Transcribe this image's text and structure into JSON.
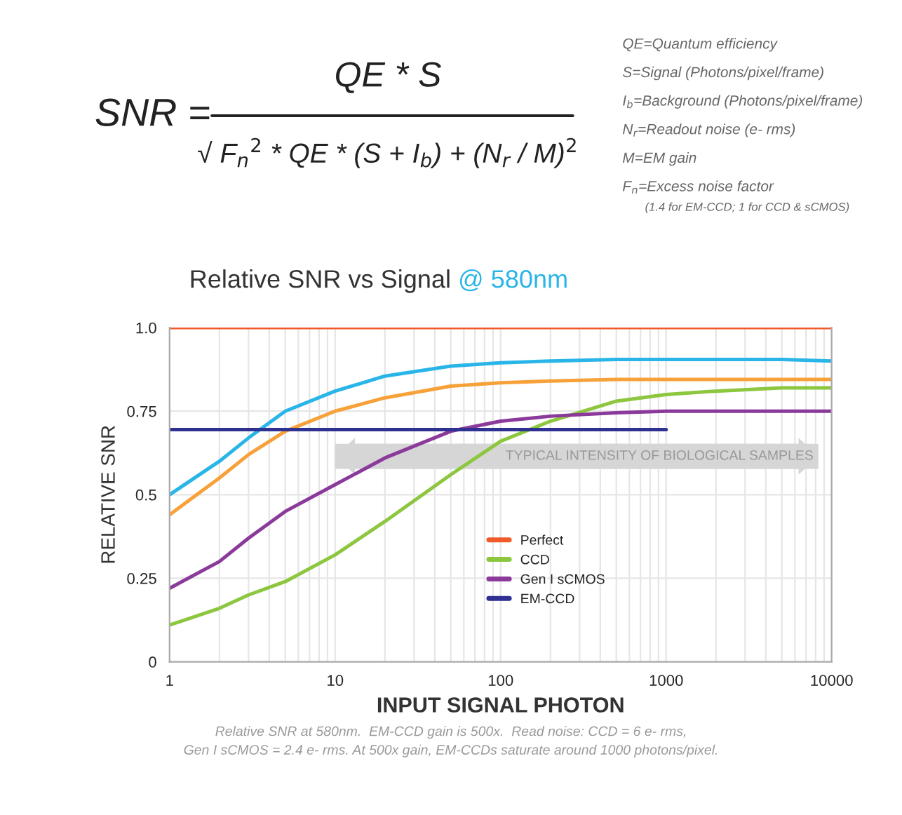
{
  "chart_data": {
    "type": "line",
    "title": "Relative SNR vs Signal",
    "subtitle": "@ 580nm",
    "xlabel": "INPUT SIGNAL PHOTON",
    "ylabel": "RELATIVE SNR",
    "log": "x",
    "xlim": [
      1,
      10000
    ],
    "xticks": [
      1,
      10,
      100,
      1000,
      10000
    ],
    "ylim": [
      0,
      1.0
    ],
    "yticks": [
      0,
      0.25,
      0.5,
      0.75,
      {
        "value": 1.0,
        "label": "1.0"
      }
    ],
    "grid": true,
    "legend": "bottom",
    "marker": "none",
    "line_style": "solid",
    "series": [
      {
        "name": "Perfect",
        "color": "#f05a28",
        "x": [
          1,
          10000
        ],
        "values": [
          1.0,
          1.0
        ]
      },
      {
        "color": "#29b5e8",
        "x": [
          1,
          2,
          3,
          5,
          10,
          20,
          50,
          100,
          200,
          500,
          1000,
          2000,
          5000,
          10000
        ],
        "values": [
          0.5,
          0.6,
          0.67,
          0.75,
          0.81,
          0.855,
          0.885,
          0.895,
          0.9,
          0.905,
          0.905,
          0.905,
          0.905,
          0.9
        ]
      },
      {
        "color": "#f7a13a",
        "x": [
          1,
          2,
          3,
          5,
          10,
          20,
          50,
          100,
          200,
          500,
          1000,
          2000,
          5000,
          10000
        ],
        "values": [
          0.44,
          0.55,
          0.62,
          0.69,
          0.75,
          0.79,
          0.825,
          0.835,
          0.84,
          0.845,
          0.845,
          0.845,
          0.845,
          0.845
        ]
      },
      {
        "name": "CCD",
        "color": "#8dc63f",
        "x": [
          1,
          2,
          3,
          5,
          10,
          20,
          50,
          100,
          200,
          500,
          1000,
          2000,
          5000,
          10000
        ],
        "values": [
          0.11,
          0.16,
          0.2,
          0.24,
          0.32,
          0.42,
          0.56,
          0.66,
          0.72,
          0.78,
          0.8,
          0.81,
          0.82,
          0.82
        ]
      },
      {
        "name": "Gen I sCMOS",
        "color": "#8b3a9b",
        "x": [
          1,
          2,
          3,
          5,
          10,
          20,
          50,
          100,
          200,
          500,
          1000,
          2000,
          5000,
          10000
        ],
        "values": [
          0.22,
          0.3,
          0.37,
          0.45,
          0.53,
          0.61,
          0.69,
          0.72,
          0.735,
          0.745,
          0.75,
          0.75,
          0.75,
          0.75
        ]
      },
      {
        "name": "EM-CCD",
        "color": "#2e3192",
        "x": [
          1,
          1000
        ],
        "values": [
          0.695,
          0.695
        ]
      }
    ],
    "annotations": [
      "TYPICAL INTENSITY OF BIOLOGICAL SAMPLES",
      "SNR =",
      "QE * S",
      "√ F$_{n}$$^{2}$ * QE * (S + I$_{b}$) + (N$_{r}$ / M)$^{2}$",
      "QE=Quantum efficiency",
      "S=Signal (Photons/pixel/frame)",
      "I$_{b}$=Background (Photons/pixel/frame)",
      "N$_{r}$=Readout noise (e- rms)",
      "M=EM gain",
      "F$_{n}$=Excess noise factor",
      "(1.4 for EM-CCD; 1 for CCD & sCMOS)",
      "Relative SNR at 580nm.  EM-CCD gain is 500x.  Read noise: CCD = 6 e- rms,\nGen I sCMOS = 2.4 e- rms. At 500x gain, EM-CCDs saturate around 1000 photons/pixel."
    ]
  }
}
